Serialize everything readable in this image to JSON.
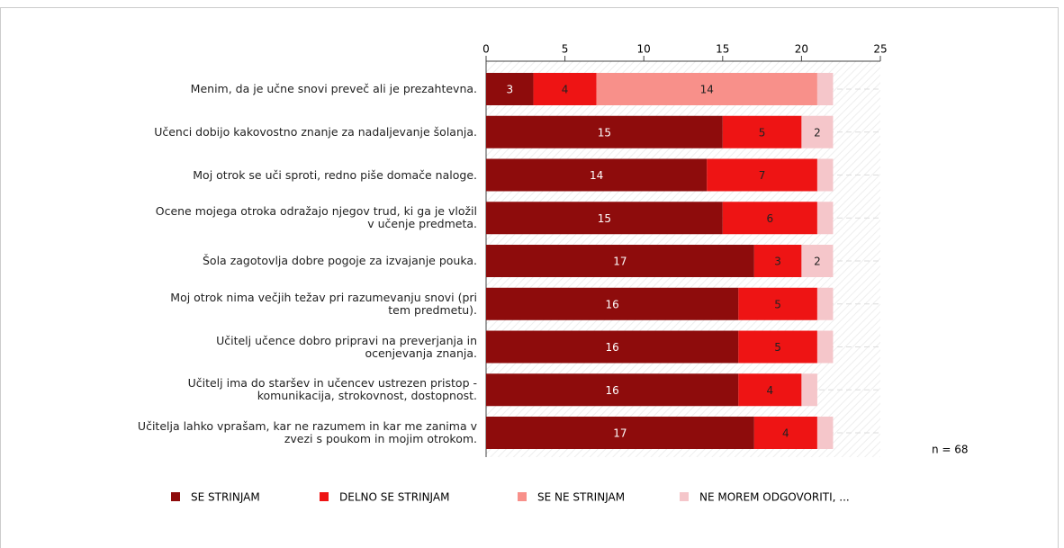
{
  "chart_data": {
    "type": "stacked_barh",
    "categories": [
      "Menim, da je učne snovi preveč ali je prezahtevna.",
      "Učenci dobijo kakovostno znanje za nadaljevanje šolanja.",
      "Moj otrok se uči sproti, redno piše domače naloge.",
      "Ocene mojega otroka odražajo njegov trud, ki ga je vložil\nv učenje predmeta.",
      "Šola zagotovlja dobre pogoje za izvajanje pouka.",
      "Moj otrok nima večjih težav pri razumevanju snovi (pri\ntem predmetu).",
      "Učitelj učence dobro pripravi na preverjanja in\nocenjevanja znanja.",
      "Učitelj ima do staršev in učencev ustrezen pristop -\nkomunikacija, strokovnost, dostopnost.",
      "Učitelja lahko vprašam, kar ne razumem in kar me zanima v\nzvezi s poukom in mojim otrokom."
    ],
    "series": [
      {
        "name": "SE STRINJAM",
        "color": "#8e0c0c",
        "values": [
          3,
          15,
          14,
          15,
          17,
          16,
          16,
          16,
          17
        ]
      },
      {
        "name": "DELNO SE STRINJAM",
        "color": "#ee1414",
        "values": [
          4,
          5,
          7,
          6,
          3,
          5,
          5,
          4,
          4
        ]
      },
      {
        "name": "SE NE STRINJAM",
        "color": "#f8908a",
        "values": [
          14,
          0,
          0,
          0,
          0,
          0,
          0,
          0,
          0
        ]
      },
      {
        "name": "NE MOREM ODGOVORITI, ...",
        "color": "#f5c6ca",
        "values": [
          1,
          2,
          1,
          1,
          2,
          1,
          1,
          1,
          1
        ]
      }
    ],
    "xlim": [
      0,
      25
    ],
    "xticks": [
      0,
      5,
      10,
      15,
      20,
      25
    ],
    "annotation": "n = 68",
    "legend": "bottom"
  }
}
